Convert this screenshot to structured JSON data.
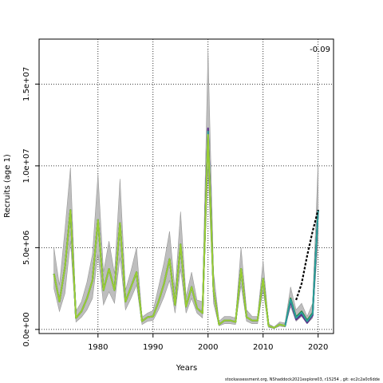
{
  "footer": "stockassessment.org, NShaddock2021explore03, r15254 , git: ec2c2a0c6dde",
  "chart_data": {
    "type": "line",
    "title": "",
    "xlabel": "Years",
    "ylabel": "Recruits (age 1)",
    "corner_label": "-0.09",
    "xlim": [
      1969.3,
      2022.8
    ],
    "ylim": [
      -250000,
      17750000
    ],
    "x_ticks": [
      1980,
      1990,
      2000,
      2010,
      2020
    ],
    "x_tick_labels": [
      "1980",
      "1990",
      "2000",
      "2010",
      "2020"
    ],
    "y_ticks": [
      0,
      5000000,
      10000000,
      15000000
    ],
    "y_tick_labels": [
      "0.0e+00",
      "5.0e+06",
      "1.0e+07",
      "1.5e+07"
    ],
    "grid": true,
    "band_color": "#bebebe",
    "years": [
      1972,
      1973,
      1974,
      1975,
      1976,
      1977,
      1978,
      1979,
      1980,
      1981,
      1982,
      1983,
      1984,
      1985,
      1986,
      1987,
      1988,
      1989,
      1990,
      1991,
      1992,
      1993,
      1994,
      1995,
      1996,
      1997,
      1998,
      1999,
      2000,
      2001,
      2002,
      2003,
      2004,
      2005,
      2006,
      2007,
      2008,
      2009,
      2010,
      2011,
      2012,
      2013,
      2014,
      2015,
      2016,
      2017,
      2018,
      2019,
      2020
    ],
    "ci_lower": [
      2500000,
      1100000,
      2200000,
      5400000,
      450000,
      750000,
      1200000,
      1900000,
      4600000,
      1500000,
      2300000,
      1600000,
      4400000,
      1200000,
      1900000,
      2700000,
      300000,
      500000,
      550000,
      1200000,
      2000000,
      3000000,
      1000000,
      3700000,
      1000000,
      1900000,
      1000000,
      700000,
      9800000,
      1600000,
      220000,
      350000,
      350000,
      300000,
      2700000,
      500000,
      350000,
      350000,
      2400000,
      120000,
      60000,
      200000,
      150000,
      1400000,
      500000,
      800000,
      350000,
      700000,
      5500000
    ],
    "ci_upper": [
      5000000,
      2700000,
      6100000,
      9900000,
      1100000,
      1700000,
      2900000,
      4600000,
      9500000,
      3500000,
      5400000,
      3400000,
      9200000,
      2400000,
      3600000,
      5000000,
      750000,
      1000000,
      1150000,
      2600000,
      4100000,
      6000000,
      2400000,
      7200000,
      2000000,
      3500000,
      1800000,
      1700000,
      17100000,
      3500000,
      500000,
      800000,
      800000,
      700000,
      5000000,
      1200000,
      800000,
      800000,
      4200000,
      350000,
      150000,
      450000,
      400000,
      2600000,
      1200000,
      1600000,
      800000,
      1600000,
      10200000
    ],
    "series": [
      {
        "values": [
          3400000,
          1700000,
          3800000,
          7300000,
          700000,
          1100000,
          1900000,
          3000000,
          6700000,
          2400000,
          3700000,
          2400000,
          6500000,
          1700000,
          2600000,
          3500000,
          500000,
          750000,
          800000,
          1700000,
          2800000,
          4300000,
          1500000,
          5200000,
          1400000,
          2600000,
          1300000,
          1000000,
          12000000,
          2400000,
          300000,
          550000,
          550000,
          450000,
          3700000,
          750000,
          550000,
          550000,
          3100000,
          220000,
          100000,
          300000,
          220000,
          1900000,
          750000,
          1100000,
          550000,
          1000000,
          7300000
        ],
        "color": "#1f7a1f"
      },
      {
        "values": [
          3400000,
          1700000,
          3800000,
          7300000,
          700000,
          1100000,
          1900000,
          3000000,
          6700000,
          2400000,
          3700000,
          2400000,
          6500000,
          1700000,
          2600000,
          3500000,
          500000,
          750000,
          800000,
          1700000,
          2800000,
          4300000,
          1500000,
          5200000,
          1400000,
          2600000,
          1300000,
          1000000,
          12200000,
          2400000,
          300000,
          550000,
          550000,
          450000,
          3700000,
          750000,
          550000,
          550000,
          3100000,
          220000,
          100000,
          300000,
          220000,
          1800000,
          650000,
          1000000,
          450000,
          900000,
          7300000
        ],
        "color": "#31468b"
      },
      {
        "values": [
          3400000,
          1700000,
          3800000,
          7300000,
          700000,
          1100000,
          1900000,
          3000000,
          6700000,
          2400000,
          3700000,
          2400000,
          6500000,
          1700000,
          2600000,
          3500000,
          500000,
          750000,
          800000,
          1700000,
          2800000,
          4300000,
          1500000,
          5200000,
          1400000,
          2600000,
          1300000,
          1000000,
          12300000,
          2400000,
          300000,
          550000,
          550000,
          450000,
          3700000,
          750000,
          550000,
          550000,
          3100000,
          220000,
          100000,
          300000,
          220000,
          1700000,
          600000,
          900000,
          400000,
          850000,
          7300000
        ],
        "color": "#5b2d8a"
      },
      {
        "values": [
          3400000,
          1700000,
          3800000,
          7300000,
          700000,
          1100000,
          1900000,
          3000000,
          6700000,
          2400000,
          3700000,
          2400000,
          6500000,
          1700000,
          2600000,
          3500000,
          500000,
          750000,
          800000,
          1700000,
          2800000,
          4300000,
          1500000,
          5200000,
          1400000,
          2600000,
          1300000,
          1000000,
          12100000,
          2400000,
          300000,
          550000,
          550000,
          450000,
          3700000,
          750000,
          550000,
          550000,
          3100000,
          220000,
          100000,
          300000,
          220000,
          1850000,
          700000,
          1050000,
          500000,
          950000,
          7300000
        ],
        "color": "#2aa198"
      },
      {
        "values": [
          3400000,
          1700000,
          3800000,
          7300000,
          700000,
          1100000,
          1900000,
          3000000,
          6700000,
          2400000,
          3700000,
          2400000,
          6500000,
          1700000,
          2600000,
          3500000,
          500000,
          750000,
          800000,
          1700000,
          2800000,
          4300000,
          1500000,
          5200000,
          1400000,
          2600000,
          1300000,
          1000000,
          11900000,
          2400000,
          300000,
          550000,
          550000,
          450000,
          3700000,
          750000,
          550000,
          550000,
          3100000,
          220000,
          100000,
          300000,
          220000,
          null,
          null,
          null,
          null,
          null,
          null
        ],
        "color": "#9acd32"
      }
    ],
    "main_series": {
      "years": [
        2016,
        2017,
        2018,
        2019,
        2020
      ],
      "values": [
        1800000,
        2800000,
        4500000,
        6000000,
        7300000
      ],
      "color": "#000000",
      "dashed": true
    }
  }
}
